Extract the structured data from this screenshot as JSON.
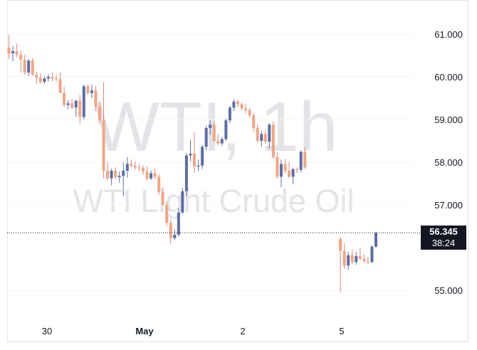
{
  "chart_data": {
    "type": "candlestick",
    "symbol": "WTI",
    "timeframe": "1h",
    "watermark": {
      "line1": "WTI, 1h",
      "line2": "WTI Light Crude Oil"
    },
    "y_ticks": [
      "61.000",
      "60.000",
      "59.000",
      "58.000",
      "57.000",
      "55.000"
    ],
    "y_tick_values": [
      61,
      60,
      59,
      58,
      57,
      55
    ],
    "ylim": [
      54.35,
      61.8
    ],
    "x_ticks": [
      "30",
      "May",
      "2",
      "5"
    ],
    "last_price": {
      "value": 56.345,
      "label": "56.345",
      "countdown": "38:24"
    },
    "colors": {
      "up": "#5b6ea6",
      "down": "#f4a582",
      "wick": "#d8877a",
      "text": "#131722",
      "watermark": "#e4e4e8",
      "grid": "#f3f4f7",
      "border": "#e0e3eb"
    },
    "candles": [
      {
        "o": 60.68,
        "h": 60.98,
        "l": 60.42,
        "c": 60.55
      },
      {
        "o": 60.55,
        "h": 60.72,
        "l": 60.36,
        "c": 60.6
      },
      {
        "o": 60.6,
        "h": 60.78,
        "l": 60.46,
        "c": 60.52
      },
      {
        "o": 60.52,
        "h": 60.62,
        "l": 60.1,
        "c": 60.4
      },
      {
        "o": 60.4,
        "h": 60.52,
        "l": 60.05,
        "c": 60.1
      },
      {
        "o": 60.1,
        "h": 60.42,
        "l": 60.02,
        "c": 60.38
      },
      {
        "o": 60.38,
        "h": 60.44,
        "l": 60.02,
        "c": 60.05
      },
      {
        "o": 60.05,
        "h": 60.12,
        "l": 59.84,
        "c": 59.98
      },
      {
        "o": 59.98,
        "h": 60.08,
        "l": 59.84,
        "c": 59.88
      },
      {
        "o": 59.88,
        "h": 60.02,
        "l": 59.84,
        "c": 59.96
      },
      {
        "o": 59.96,
        "h": 60.06,
        "l": 59.9,
        "c": 60.0
      },
      {
        "o": 60.0,
        "h": 60.1,
        "l": 59.9,
        "c": 59.96
      },
      {
        "o": 59.96,
        "h": 60.05,
        "l": 59.88,
        "c": 59.94
      },
      {
        "o": 59.94,
        "h": 60.1,
        "l": 59.62,
        "c": 59.62
      },
      {
        "o": 59.62,
        "h": 59.78,
        "l": 59.3,
        "c": 59.34
      },
      {
        "o": 59.34,
        "h": 59.46,
        "l": 59.24,
        "c": 59.38
      },
      {
        "o": 59.38,
        "h": 59.48,
        "l": 59.24,
        "c": 59.28
      },
      {
        "o": 59.28,
        "h": 59.46,
        "l": 59.06,
        "c": 59.44
      },
      {
        "o": 59.44,
        "h": 59.58,
        "l": 58.9,
        "c": 59.06
      },
      {
        "o": 59.06,
        "h": 59.82,
        "l": 59.0,
        "c": 59.78
      },
      {
        "o": 59.78,
        "h": 59.82,
        "l": 59.58,
        "c": 59.62
      },
      {
        "o": 59.62,
        "h": 59.82,
        "l": 59.5,
        "c": 59.68
      },
      {
        "o": 59.68,
        "h": 59.78,
        "l": 59.2,
        "c": 59.3
      },
      {
        "o": 59.3,
        "h": 59.42,
        "l": 58.9,
        "c": 58.98
      },
      {
        "o": 58.98,
        "h": 59.88,
        "l": 57.62,
        "c": 57.8
      },
      {
        "o": 57.8,
        "h": 58.0,
        "l": 57.58,
        "c": 57.62
      },
      {
        "o": 57.62,
        "h": 57.85,
        "l": 57.46,
        "c": 57.8
      },
      {
        "o": 57.8,
        "h": 57.88,
        "l": 57.6,
        "c": 57.65
      },
      {
        "o": 57.65,
        "h": 57.78,
        "l": 57.52,
        "c": 57.68
      },
      {
        "o": 57.68,
        "h": 58.0,
        "l": 57.2,
        "c": 57.8
      },
      {
        "o": 57.8,
        "h": 58.12,
        "l": 57.64,
        "c": 57.96
      },
      {
        "o": 57.96,
        "h": 58.06,
        "l": 57.88,
        "c": 57.92
      },
      {
        "o": 57.92,
        "h": 58.02,
        "l": 57.82,
        "c": 57.88
      },
      {
        "o": 57.88,
        "h": 57.96,
        "l": 57.8,
        "c": 57.86
      },
      {
        "o": 57.86,
        "h": 57.92,
        "l": 57.7,
        "c": 57.78
      },
      {
        "o": 57.78,
        "h": 57.9,
        "l": 57.58,
        "c": 57.62
      },
      {
        "o": 57.62,
        "h": 57.8,
        "l": 57.58,
        "c": 57.74
      },
      {
        "o": 57.74,
        "h": 57.85,
        "l": 57.6,
        "c": 57.66
      },
      {
        "o": 57.66,
        "h": 57.72,
        "l": 57.24,
        "c": 57.3
      },
      {
        "o": 57.3,
        "h": 57.4,
        "l": 56.98,
        "c": 57.0
      },
      {
        "o": 57.0,
        "h": 57.08,
        "l": 56.5,
        "c": 56.58
      },
      {
        "o": 56.58,
        "h": 56.65,
        "l": 56.08,
        "c": 56.22
      },
      {
        "o": 56.22,
        "h": 56.42,
        "l": 56.18,
        "c": 56.3
      },
      {
        "o": 56.3,
        "h": 56.92,
        "l": 56.26,
        "c": 56.82
      },
      {
        "o": 56.82,
        "h": 57.4,
        "l": 56.8,
        "c": 57.32
      },
      {
        "o": 57.32,
        "h": 58.22,
        "l": 57.2,
        "c": 58.16
      },
      {
        "o": 58.16,
        "h": 58.52,
        "l": 58.02,
        "c": 58.2
      },
      {
        "o": 58.2,
        "h": 58.7,
        "l": 57.76,
        "c": 57.9
      },
      {
        "o": 57.9,
        "h": 58.06,
        "l": 57.8,
        "c": 57.92
      },
      {
        "o": 57.92,
        "h": 58.4,
        "l": 57.84,
        "c": 58.36
      },
      {
        "o": 58.36,
        "h": 58.86,
        "l": 58.28,
        "c": 58.8
      },
      {
        "o": 58.8,
        "h": 58.98,
        "l": 58.64,
        "c": 58.88
      },
      {
        "o": 58.88,
        "h": 58.95,
        "l": 58.48,
        "c": 58.5
      },
      {
        "o": 58.5,
        "h": 58.66,
        "l": 58.4,
        "c": 58.44
      },
      {
        "o": 58.44,
        "h": 58.6,
        "l": 58.38,
        "c": 58.54
      },
      {
        "o": 58.54,
        "h": 59.02,
        "l": 58.5,
        "c": 58.98
      },
      {
        "o": 58.98,
        "h": 59.32,
        "l": 58.92,
        "c": 59.28
      },
      {
        "o": 59.28,
        "h": 59.48,
        "l": 59.2,
        "c": 59.42
      },
      {
        "o": 59.42,
        "h": 59.46,
        "l": 59.3,
        "c": 59.36
      },
      {
        "o": 59.36,
        "h": 59.4,
        "l": 59.22,
        "c": 59.26
      },
      {
        "o": 59.26,
        "h": 59.36,
        "l": 59.14,
        "c": 59.22
      },
      {
        "o": 59.22,
        "h": 59.28,
        "l": 59.04,
        "c": 59.1
      },
      {
        "o": 59.1,
        "h": 59.16,
        "l": 58.72,
        "c": 58.8
      },
      {
        "o": 58.8,
        "h": 58.88,
        "l": 58.46,
        "c": 58.5
      },
      {
        "o": 58.5,
        "h": 58.74,
        "l": 58.36,
        "c": 58.66
      },
      {
        "o": 58.66,
        "h": 58.74,
        "l": 58.44,
        "c": 58.48
      },
      {
        "o": 58.48,
        "h": 58.92,
        "l": 58.32,
        "c": 58.88
      },
      {
        "o": 58.88,
        "h": 58.96,
        "l": 58.08,
        "c": 58.12
      },
      {
        "o": 58.12,
        "h": 58.22,
        "l": 57.62,
        "c": 57.66
      },
      {
        "o": 57.66,
        "h": 58.06,
        "l": 57.42,
        "c": 57.96
      },
      {
        "o": 57.96,
        "h": 58.08,
        "l": 57.74,
        "c": 57.8
      },
      {
        "o": 57.8,
        "h": 58.0,
        "l": 57.62,
        "c": 57.66
      },
      {
        "o": 57.66,
        "h": 57.86,
        "l": 57.48,
        "c": 57.84
      },
      {
        "o": 57.84,
        "h": 57.88,
        "l": 57.74,
        "c": 57.82
      },
      {
        "o": 57.82,
        "h": 58.28,
        "l": 57.76,
        "c": 58.24
      },
      {
        "o": 58.24,
        "h": 58.36,
        "l": 57.84,
        "c": 57.88
      },
      null,
      null,
      null,
      null,
      null,
      null,
      null,
      null,
      {
        "o": 56.2,
        "h": 56.25,
        "l": 54.95,
        "c": 55.92
      },
      {
        "o": 55.92,
        "h": 56.1,
        "l": 55.5,
        "c": 55.58
      },
      {
        "o": 55.58,
        "h": 55.9,
        "l": 55.48,
        "c": 55.82
      },
      {
        "o": 55.82,
        "h": 55.96,
        "l": 55.6,
        "c": 55.66
      },
      {
        "o": 55.66,
        "h": 55.9,
        "l": 55.6,
        "c": 55.8
      },
      {
        "o": 55.8,
        "h": 56.0,
        "l": 55.7,
        "c": 55.74
      },
      {
        "o": 55.74,
        "h": 55.84,
        "l": 55.64,
        "c": 55.68
      },
      {
        "o": 55.68,
        "h": 55.78,
        "l": 55.62,
        "c": 55.66
      },
      {
        "o": 55.66,
        "h": 56.05,
        "l": 55.64,
        "c": 56.02
      },
      {
        "o": 56.02,
        "h": 56.36,
        "l": 56.0,
        "c": 56.345
      }
    ]
  }
}
